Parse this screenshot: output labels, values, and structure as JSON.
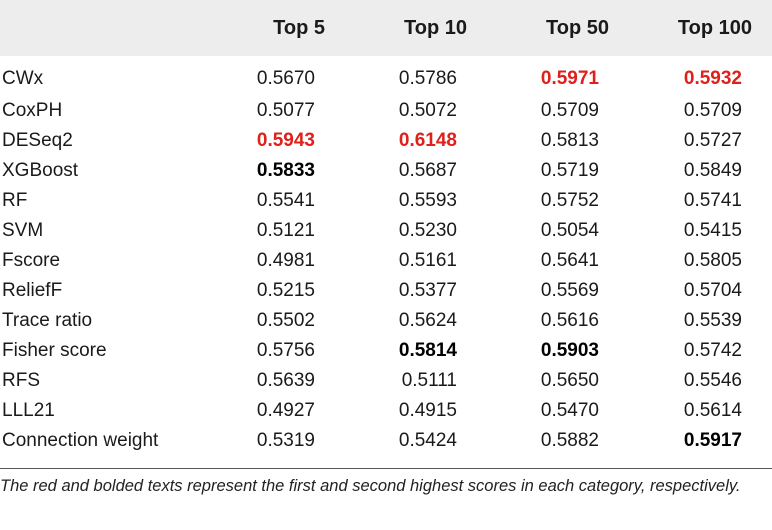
{
  "table": {
    "columns": [
      "",
      "Top 5",
      "Top 10",
      "Top 50",
      "Top 100"
    ],
    "rows": [
      {
        "name": "CWx",
        "values": [
          "0.5670",
          "0.5786",
          "0.5971",
          "0.5932"
        ],
        "marks": [
          "",
          "",
          "best",
          "best"
        ]
      },
      {
        "name": "CoxPH",
        "values": [
          "0.5077",
          "0.5072",
          "0.5709",
          "0.5709"
        ],
        "marks": [
          "",
          "",
          "",
          ""
        ]
      },
      {
        "name": "DESeq2",
        "values": [
          "0.5943",
          "0.6148",
          "0.5813",
          "0.5727"
        ],
        "marks": [
          "best",
          "best",
          "",
          ""
        ]
      },
      {
        "name": "XGBoost",
        "values": [
          "0.5833",
          "0.5687",
          "0.5719",
          "0.5849"
        ],
        "marks": [
          "second",
          "",
          "",
          ""
        ]
      },
      {
        "name": "RF",
        "values": [
          "0.5541",
          "0.5593",
          "0.5752",
          "0.5741"
        ],
        "marks": [
          "",
          "",
          "",
          ""
        ]
      },
      {
        "name": "SVM",
        "values": [
          "0.5121",
          "0.5230",
          "0.5054",
          "0.5415"
        ],
        "marks": [
          "",
          "",
          "",
          ""
        ]
      },
      {
        "name": "Fscore",
        "values": [
          "0.4981",
          "0.5161",
          "0.5641",
          "0.5805"
        ],
        "marks": [
          "",
          "",
          "",
          ""
        ]
      },
      {
        "name": "ReliefF",
        "values": [
          "0.5215",
          "0.5377",
          "0.5569",
          "0.5704"
        ],
        "marks": [
          "",
          "",
          "",
          ""
        ]
      },
      {
        "name": "Trace ratio",
        "values": [
          "0.5502",
          "0.5624",
          "0.5616",
          "0.5539"
        ],
        "marks": [
          "",
          "",
          "",
          ""
        ]
      },
      {
        "name": "Fisher score",
        "values": [
          "0.5756",
          "0.5814",
          "0.5903",
          "0.5742"
        ],
        "marks": [
          "",
          "second",
          "second",
          ""
        ]
      },
      {
        "name": "RFS",
        "values": [
          "0.5639",
          "0.5111",
          "0.5650",
          "0.5546"
        ],
        "marks": [
          "",
          "",
          "",
          ""
        ]
      },
      {
        "name": "LLL21",
        "values": [
          "0.4927",
          "0.4915",
          "0.5470",
          "0.5614"
        ],
        "marks": [
          "",
          "",
          "",
          ""
        ]
      },
      {
        "name": "Connection weight",
        "values": [
          "0.5319",
          "0.5424",
          "0.5882",
          "0.5917"
        ],
        "marks": [
          "",
          "",
          "",
          "second"
        ]
      }
    ]
  },
  "caption": "The red and bolded texts represent the first and second highest scores in each category, respectively.",
  "colors": {
    "best": "#e0201b",
    "header_bg": "#ededed"
  }
}
